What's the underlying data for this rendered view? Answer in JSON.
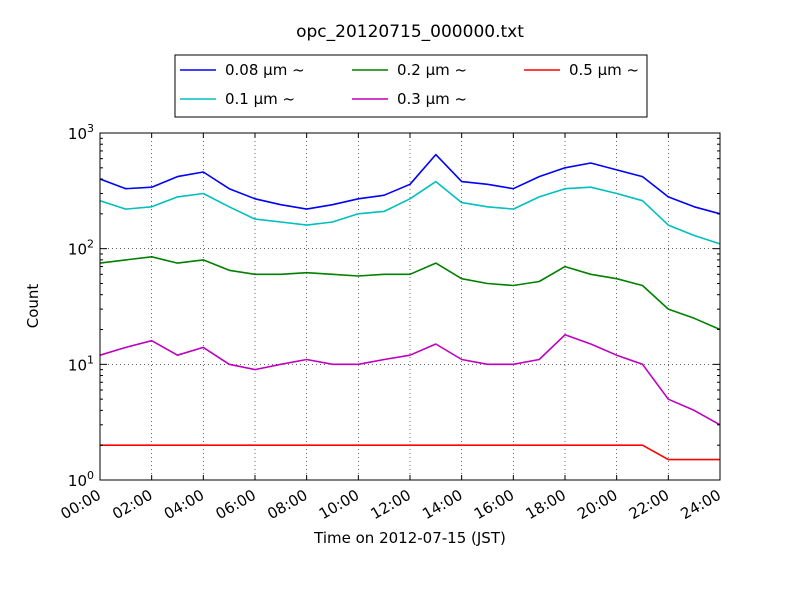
{
  "chart_data": {
    "type": "line",
    "title": "opc_20120715_000000.txt",
    "xlabel": "Time on 2012-07-15 (JST)",
    "ylabel": "Count",
    "y_scale": "log",
    "ylim": [
      1,
      1000
    ],
    "xlim": [
      "00:00",
      "24:00"
    ],
    "x_ticks": [
      "00:00",
      "02:00",
      "04:00",
      "06:00",
      "08:00",
      "10:00",
      "12:00",
      "14:00",
      "16:00",
      "18:00",
      "20:00",
      "22:00",
      "24:00"
    ],
    "y_ticks": [
      {
        "value": 1,
        "base": "10",
        "exp": "0"
      },
      {
        "value": 10,
        "base": "10",
        "exp": "1"
      },
      {
        "value": 100,
        "base": "10",
        "exp": "2"
      },
      {
        "value": 1000,
        "base": "10",
        "exp": "3"
      }
    ],
    "grid": true,
    "legend_position": "top-center",
    "x_hours": [
      0,
      1,
      2,
      3,
      4,
      5,
      6,
      7,
      8,
      9,
      10,
      11,
      12,
      13,
      14,
      15,
      16,
      17,
      18,
      19,
      20,
      21,
      22,
      23,
      24
    ],
    "series": [
      {
        "name": "0.08 μm ~",
        "color": "#0000ff",
        "values": [
          400,
          330,
          340,
          420,
          460,
          330,
          270,
          240,
          220,
          240,
          270,
          290,
          360,
          650,
          380,
          360,
          330,
          420,
          500,
          550,
          480,
          420,
          280,
          230,
          200
        ]
      },
      {
        "name": "0.1 μm ~",
        "color": "#00bfbf",
        "values": [
          260,
          220,
          230,
          280,
          300,
          230,
          180,
          170,
          160,
          170,
          200,
          210,
          270,
          380,
          250,
          230,
          220,
          280,
          330,
          340,
          300,
          260,
          160,
          130,
          110
        ]
      },
      {
        "name": "0.2 μm ~",
        "color": "#008000",
        "values": [
          75,
          80,
          85,
          75,
          80,
          65,
          60,
          60,
          62,
          60,
          58,
          60,
          60,
          75,
          55,
          50,
          48,
          52,
          70,
          60,
          55,
          48,
          30,
          25,
          20
        ]
      },
      {
        "name": "0.3 μm ~",
        "color": "#bf00bf",
        "values": [
          12,
          14,
          16,
          12,
          14,
          10,
          9,
          10,
          11,
          10,
          10,
          11,
          12,
          15,
          11,
          10,
          10,
          11,
          18,
          15,
          12,
          10,
          5,
          4,
          3
        ]
      },
      {
        "name": "0.5 μm ~",
        "color": "#ff0000",
        "values": [
          2,
          2,
          2,
          2,
          2,
          2,
          2,
          2,
          2,
          2,
          2,
          2,
          2,
          2,
          2,
          2,
          2,
          2,
          2,
          2,
          2,
          2,
          1.5,
          1.5,
          1.5
        ]
      }
    ]
  }
}
